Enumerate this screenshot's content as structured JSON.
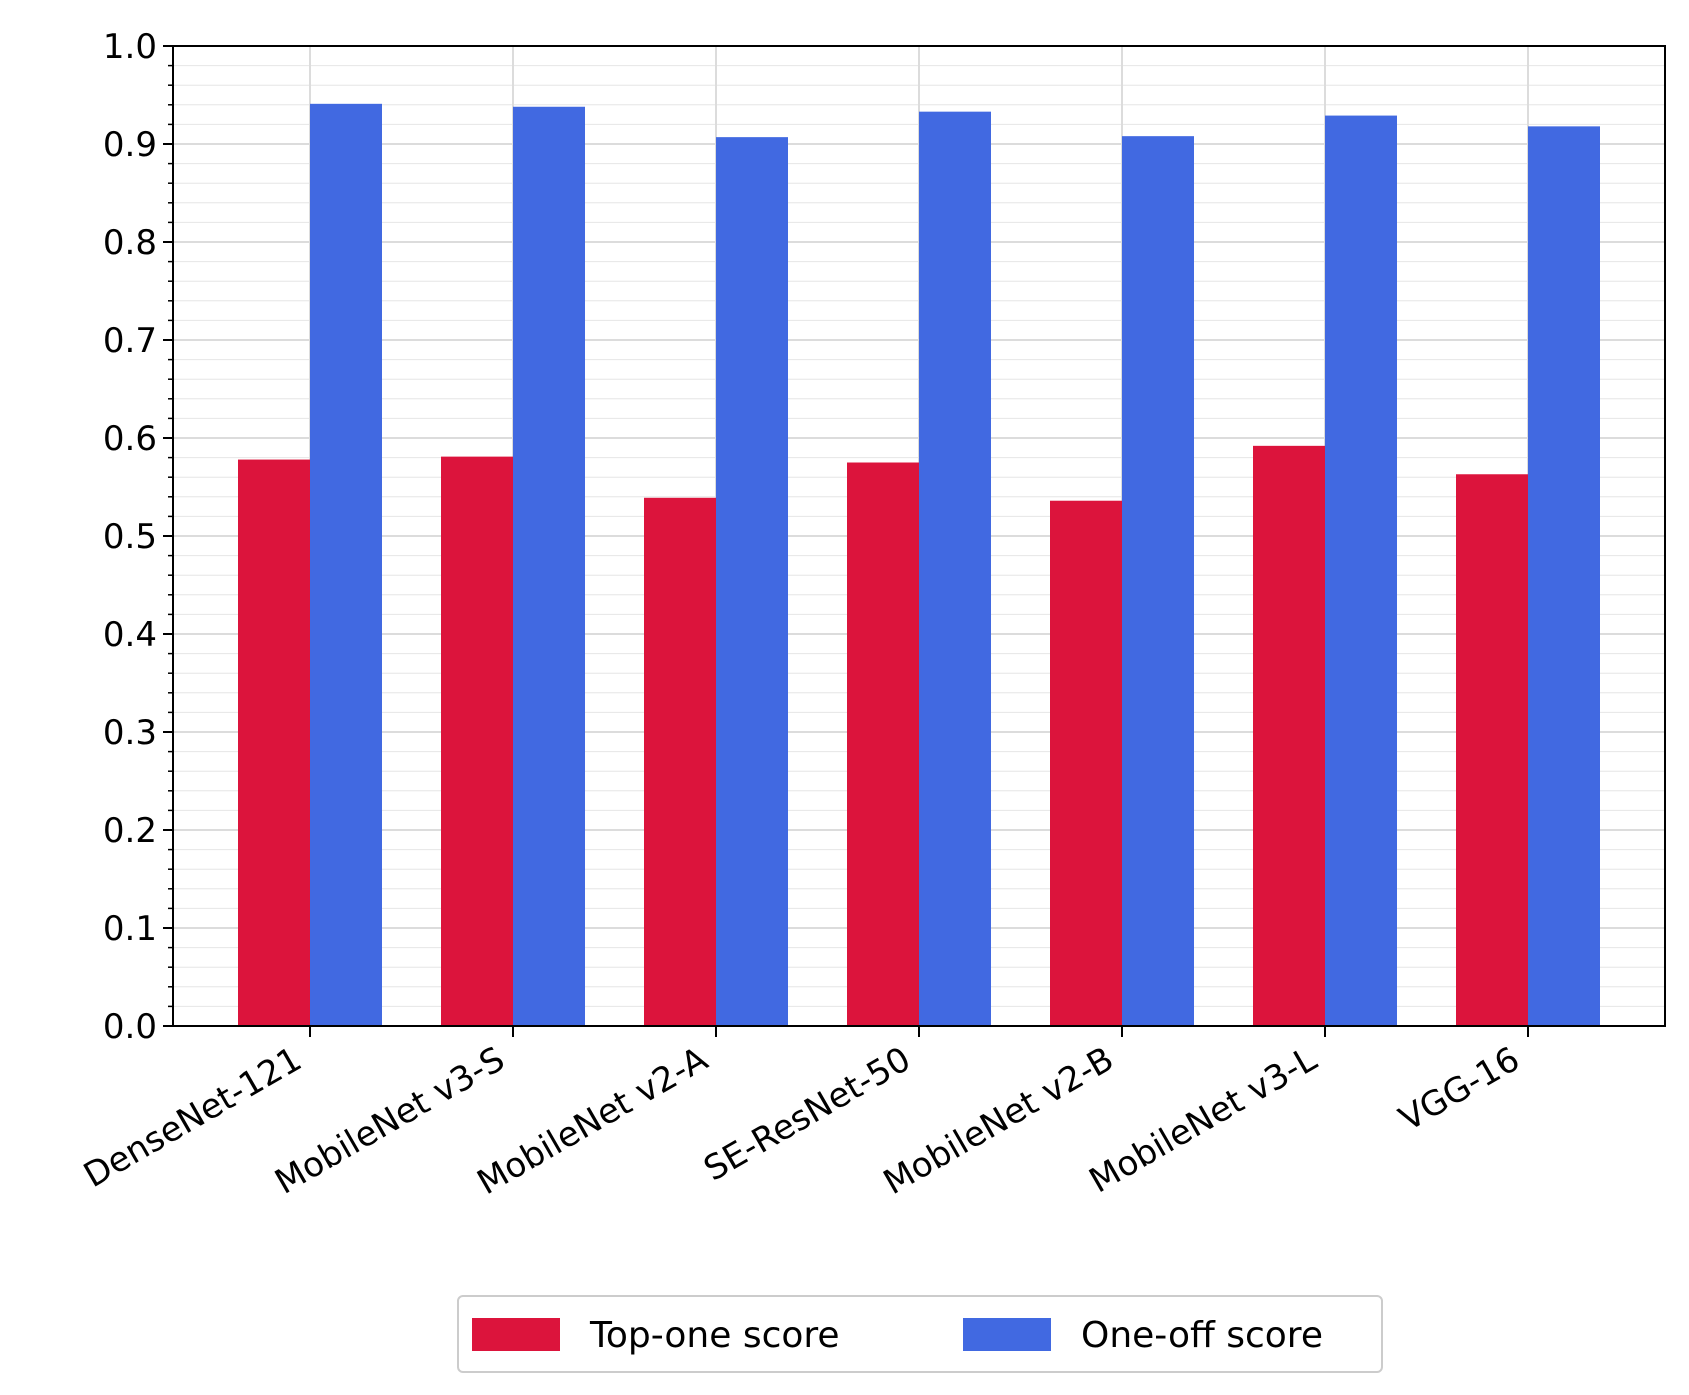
{
  "chart_data": {
    "type": "bar",
    "title": "",
    "xlabel": "",
    "ylabel": "",
    "ylim": [
      0,
      1.0
    ],
    "yticks": [
      "0.0",
      "0.1",
      "0.2",
      "0.3",
      "0.4",
      "0.5",
      "0.6",
      "0.7",
      "0.8",
      "0.9",
      "1.0"
    ],
    "categories": [
      "DenseNet-121",
      "MobileNet v3-S",
      "MobileNet v2-A",
      "SE-ResNet-50",
      "MobileNet v2-B",
      "MobileNet v3-L",
      "VGG-16"
    ],
    "series": [
      {
        "name": "Top-one score",
        "color": "#dc143c",
        "values": [
          0.578,
          0.581,
          0.539,
          0.575,
          0.536,
          0.592,
          0.563
        ]
      },
      {
        "name": "One-off score",
        "color": "#4169e1",
        "values": [
          0.941,
          0.938,
          0.907,
          0.933,
          0.908,
          0.929,
          0.918
        ]
      }
    ],
    "grid": true,
    "legend_position": "bottom-center"
  }
}
